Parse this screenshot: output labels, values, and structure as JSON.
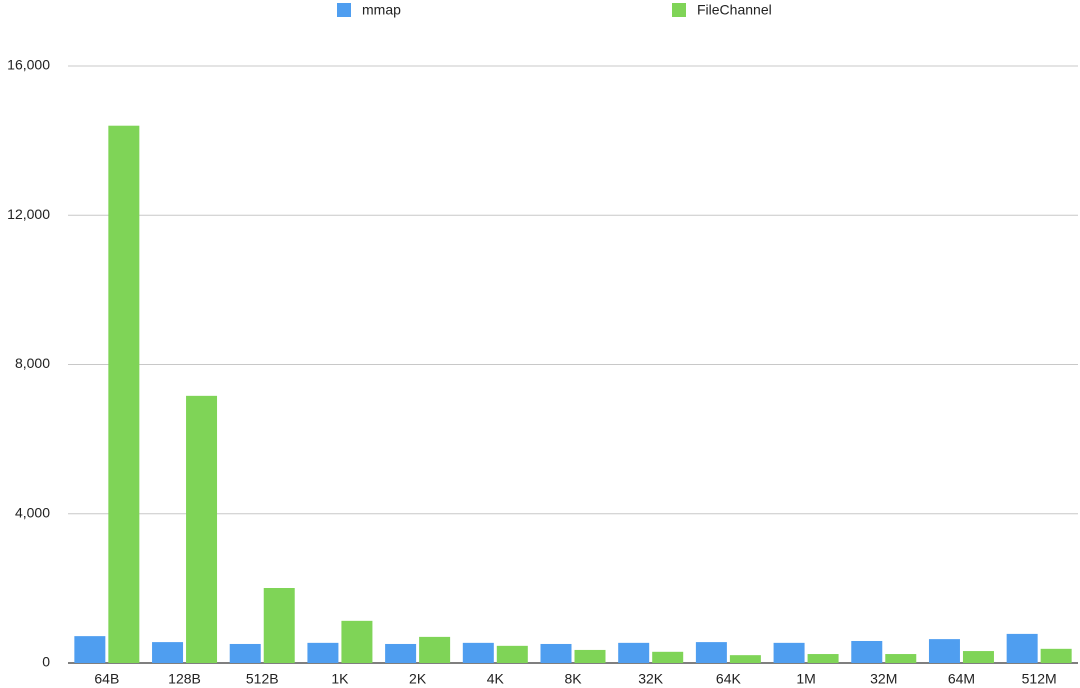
{
  "chart_data": {
    "type": "bar",
    "categories": [
      "64B",
      "128B",
      "512B",
      "1K",
      "2K",
      "4K",
      "8K",
      "32K",
      "64K",
      "1M",
      "32M",
      "64M",
      "512M"
    ],
    "series": [
      {
        "name": "mmap",
        "color": "#4f9ef0",
        "values": [
          720,
          560,
          510,
          540,
          510,
          540,
          510,
          540,
          560,
          540,
          590,
          640,
          780
        ]
      },
      {
        "name": "FileChannel",
        "color": "#7fd457",
        "values": [
          14400,
          7160,
          2010,
          1130,
          700,
          460,
          350,
          300,
          210,
          240,
          240,
          320,
          380
        ]
      }
    ],
    "ylim": [
      0,
      16000
    ],
    "yticks": [
      0,
      {
        "value": 4000,
        "label": "4,000"
      },
      {
        "value": 8000,
        "label": "8,000"
      },
      {
        "value": 12000,
        "label": "12,000"
      },
      {
        "value": 16000,
        "label": "16,000"
      }
    ],
    "grid": true
  }
}
